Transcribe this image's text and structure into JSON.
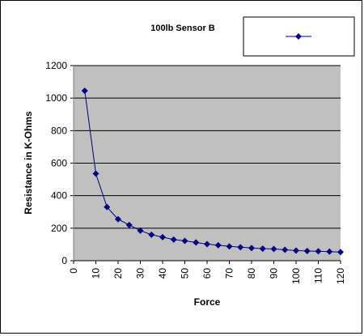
{
  "chart_data": {
    "type": "line",
    "title": "100lb Sensor B",
    "xlabel": "Force",
    "ylabel": "Resistance in K-Ohms",
    "xlim": [
      0,
      120
    ],
    "ylim": [
      0,
      1200
    ],
    "x_ticks": [
      "0",
      "10",
      "20",
      "30",
      "40",
      "50",
      "60",
      "70",
      "80",
      "90",
      "100",
      "110",
      "120"
    ],
    "y_ticks": [
      "0",
      "200",
      "400",
      "600",
      "800",
      "1000",
      "1200"
    ],
    "grid": "horizontal",
    "legend_position": "top-right",
    "plot_background": "#c0c0c0",
    "series_color": "#000080",
    "series": [
      {
        "x": [
          5,
          10,
          15,
          20,
          25,
          30,
          35,
          40,
          45,
          50,
          55,
          60,
          65,
          70,
          75,
          80,
          85,
          90,
          95,
          100,
          105,
          110,
          115,
          120
        ],
        "values": [
          1045,
          535,
          330,
          255,
          220,
          185,
          160,
          145,
          130,
          122,
          112,
          102,
          95,
          88,
          83,
          78,
          74,
          72,
          67,
          62,
          60,
          58,
          56,
          53
        ]
      }
    ]
  }
}
